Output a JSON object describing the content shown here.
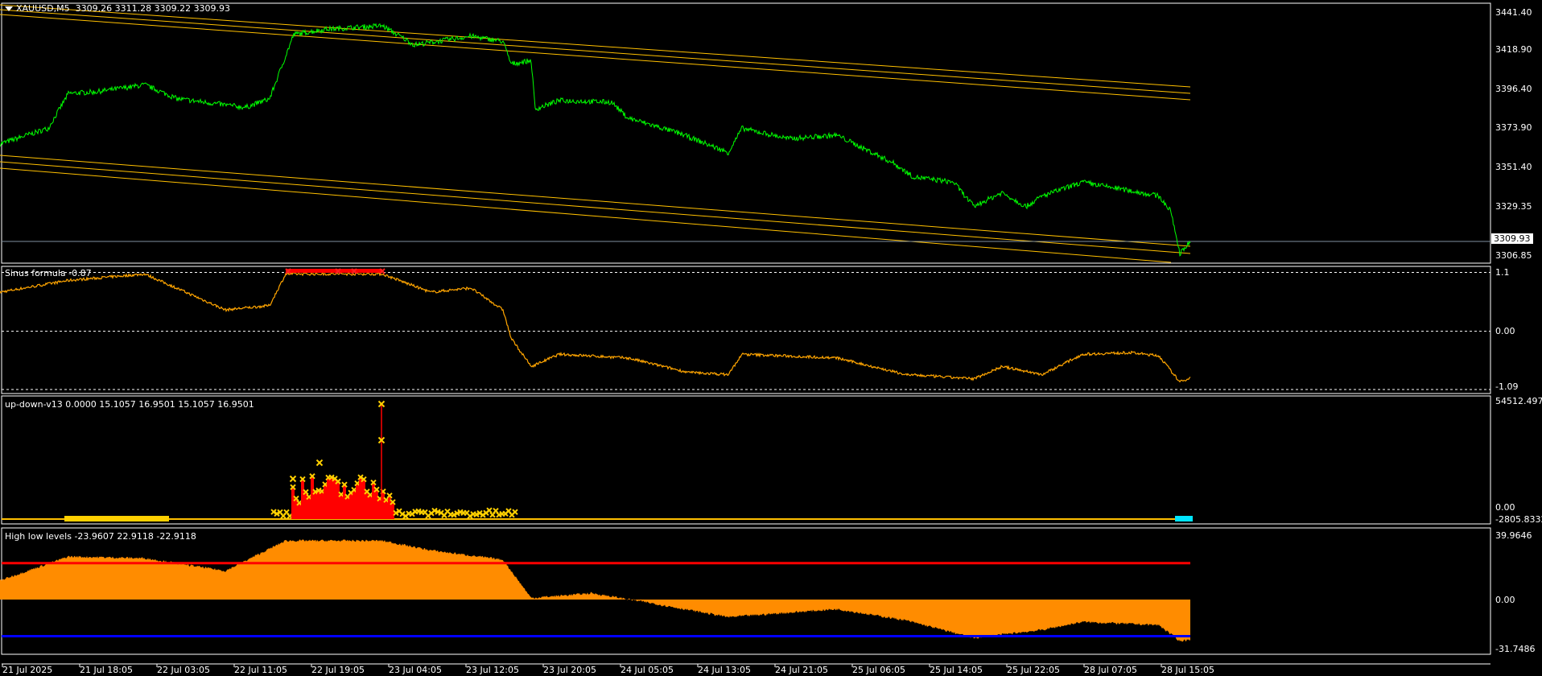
{
  "main": {
    "symbol_label": "XAUUSD,M5",
    "ohlc": "3309.26 3311.28 3309.22 3309.93",
    "current_price": "3309.93",
    "price_axis": [
      "3441.40",
      "3418.90",
      "3396.40",
      "3373.90",
      "3351.40",
      "3329.35",
      "3306.85"
    ],
    "colors": {
      "price_line": "#00ff00",
      "trend_lines": "#ffc000",
      "bid_line": "#8090a0"
    }
  },
  "sinus": {
    "label": "Sinus formula -0.87",
    "axis": [
      "1.1",
      "0.00",
      "-1.09"
    ],
    "levels": [
      1.1,
      0.0,
      -1.09
    ],
    "color": "#ffa500"
  },
  "updown": {
    "label": "up-down-v13 0.0000 15.1057 16.9501 15.1057 16.9501",
    "axis_top": "54512.497",
    "axis_bottom": "-2805.8332",
    "axis_bottom_overlap": "0.00"
  },
  "highlow": {
    "label": "High low levels -23.9607 22.9118 -22.9118",
    "axis": [
      "39.9646",
      "0.00",
      "-31.7486"
    ],
    "high_level": 22.9118,
    "low_level": -22.9118,
    "colors": {
      "area": "#ff8c00",
      "high": "#ff0000",
      "low": "#0000ff"
    }
  },
  "time_axis": [
    "21 Jul 2025",
    "21 Jul 18:05",
    "22 Jul 03:05",
    "22 Jul 11:05",
    "22 Jul 19:05",
    "23 Jul 04:05",
    "23 Jul 12:05",
    "23 Jul 20:05",
    "24 Jul 05:05",
    "24 Jul 13:05",
    "24 Jul 21:05",
    "25 Jul 06:05",
    "25 Jul 14:05",
    "25 Jul 22:05",
    "28 Jul 07:05",
    "28 Jul 15:05"
  ],
  "chart_data": {
    "type": "line",
    "x_unit": "bar index (M5)",
    "price_series": [
      [
        0,
        3366
      ],
      [
        60,
        3375
      ],
      [
        85,
        3395
      ],
      [
        120,
        3396
      ],
      [
        180,
        3400
      ],
      [
        220,
        3392
      ],
      [
        305,
        3387
      ],
      [
        335,
        3392
      ],
      [
        365,
        3429
      ],
      [
        405,
        3432
      ],
      [
        475,
        3434
      ],
      [
        515,
        3423
      ],
      [
        585,
        3428
      ],
      [
        625,
        3425
      ],
      [
        635,
        3412
      ],
      [
        660,
        3414
      ],
      [
        665,
        3386
      ],
      [
        695,
        3391
      ],
      [
        760,
        3390
      ],
      [
        780,
        3381
      ],
      [
        845,
        3372
      ],
      [
        905,
        3361
      ],
      [
        922,
        3375
      ],
      [
        980,
        3369
      ],
      [
        1040,
        3371
      ],
      [
        1110,
        3355
      ],
      [
        1135,
        3347
      ],
      [
        1185,
        3344
      ],
      [
        1210,
        3330
      ],
      [
        1245,
        3338
      ],
      [
        1275,
        3330
      ],
      [
        1295,
        3336
      ],
      [
        1345,
        3344
      ],
      [
        1405,
        3339
      ],
      [
        1440,
        3336
      ],
      [
        1455,
        3327
      ],
      [
        1466,
        3303
      ],
      [
        1479,
        3310
      ]
    ],
    "sinus_series": [
      [
        0,
        0.73
      ],
      [
        85,
        0.95
      ],
      [
        180,
        1.07
      ],
      [
        280,
        0.4
      ],
      [
        335,
        0.48
      ],
      [
        355,
        1.07
      ],
      [
        475,
        1.07
      ],
      [
        535,
        0.73
      ],
      [
        585,
        0.81
      ],
      [
        625,
        0.4
      ],
      [
        635,
        -0.13
      ],
      [
        660,
        -0.66
      ],
      [
        695,
        -0.43
      ],
      [
        780,
        -0.5
      ],
      [
        855,
        -0.77
      ],
      [
        905,
        -0.81
      ],
      [
        922,
        -0.43
      ],
      [
        1040,
        -0.5
      ],
      [
        1125,
        -0.81
      ],
      [
        1210,
        -0.89
      ],
      [
        1245,
        -0.66
      ],
      [
        1295,
        -0.81
      ],
      [
        1345,
        -0.43
      ],
      [
        1405,
        -0.4
      ],
      [
        1440,
        -0.46
      ],
      [
        1466,
        -0.95
      ],
      [
        1479,
        -0.87
      ]
    ],
    "highlow_series": [
      [
        0,
        12
      ],
      [
        85,
        27
      ],
      [
        180,
        26
      ],
      [
        280,
        18
      ],
      [
        355,
        37
      ],
      [
        475,
        37
      ],
      [
        535,
        31
      ],
      [
        625,
        25
      ],
      [
        660,
        1
      ],
      [
        735,
        4
      ],
      [
        795,
        -1
      ],
      [
        905,
        -11
      ],
      [
        1040,
        -6
      ],
      [
        1125,
        -13
      ],
      [
        1210,
        -24
      ],
      [
        1295,
        -19
      ],
      [
        1345,
        -14
      ],
      [
        1440,
        -16
      ],
      [
        1466,
        -26
      ],
      [
        1479,
        -25
      ]
    ]
  }
}
